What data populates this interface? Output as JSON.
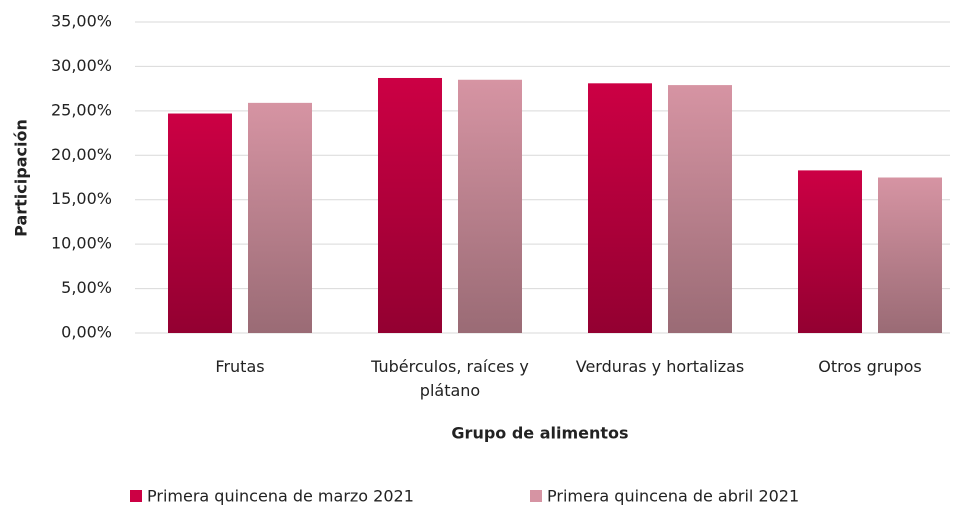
{
  "chart_data": {
    "type": "bar",
    "x_label": "Grupo de alimentos",
    "y_label": "Participación",
    "categories": [
      "Frutas",
      "Tubérculos, raíces y plátano",
      "Verduras y hortalizas",
      "Otros grupos"
    ],
    "series": [
      {
        "name": "Primera quincena de marzo 2021",
        "color": "#cc0044",
        "values": [
          24.7,
          28.7,
          28.1,
          18.3
        ]
      },
      {
        "name": "Primera quincena de abril 2021",
        "color": "#d694a3",
        "values": [
          25.9,
          28.5,
          27.9,
          17.5
        ]
      }
    ],
    "ylim": [
      0,
      35
    ],
    "yticks": [
      {
        "value": 0,
        "label": "0,00%"
      },
      {
        "value": 5,
        "label": "5,00%"
      },
      {
        "value": 10,
        "label": "10,00%"
      },
      {
        "value": 15,
        "label": "15,00%"
      },
      {
        "value": 20,
        "label": "20,00%"
      },
      {
        "value": 25,
        "label": "25,00%"
      },
      {
        "value": 30,
        "label": "30,00%"
      },
      {
        "value": 35,
        "label": "35,00%"
      }
    ],
    "grid": true,
    "legend": "bottom"
  }
}
